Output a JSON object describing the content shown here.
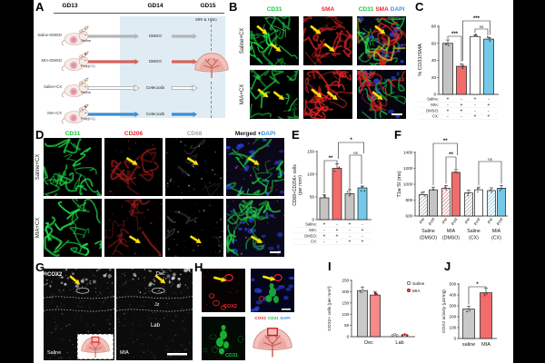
{
  "colors": {
    "green_label": "#18c23c",
    "red_label": "#e8262d",
    "blue_label": "#3f8fe8",
    "gray_label": "#a8a8a8",
    "bar_gray": "#c4c4c4",
    "bar_red": "#f26c6c",
    "bar_blue": "#74c9e9",
    "bar_white": "#ffffff",
    "arrow_yellow": "#ffe10a",
    "timeline_bg": "#dfecf4"
  },
  "panelA": {
    "letter": "A",
    "timepoints": [
      "GD13",
      "GD14",
      "GD15"
    ],
    "endpoint": "MRI & Histo",
    "rows": [
      {
        "group": "Saline+DMSO",
        "injection": "Saline",
        "treatment": "DMSO",
        "arrow_color": "#b6b6b6",
        "arrow_style": "solid",
        "syringe_color": "#dca83e"
      },
      {
        "group": "MIA+DMSO",
        "injection": "Poly(I:C)",
        "treatment": "DMSO",
        "arrow_color": "#d8625c",
        "arrow_style": "solid",
        "syringe_color": "#c24a44"
      },
      {
        "group": "Saline+CX",
        "injection": "Saline",
        "treatment": "Celecoxib",
        "arrow_color": "#c9c9c9",
        "arrow_style": "outline",
        "syringe_color": "#dca83e"
      },
      {
        "group": "MIA+CX",
        "injection": "Poly(I:C)",
        "treatment": "Celecoxib",
        "arrow_color": "#3e8ed0",
        "arrow_style": "solid",
        "syringe_color": "#c24a44"
      }
    ]
  },
  "panelB": {
    "letter": "B",
    "columns": [
      {
        "label": "CD31",
        "color": "#18c23c"
      },
      {
        "label": "SMA",
        "color": "#e8262d"
      }
    ],
    "merged_parts": [
      {
        "text": "CD31",
        "color": "#18c23c"
      },
      {
        "text": "SMA",
        "color": "#e8262d"
      },
      {
        "text": "DAPI",
        "color": "#3f8fe8"
      }
    ],
    "rows": [
      "Saline+CX",
      "MIA+CX"
    ]
  },
  "panelD": {
    "letter": "D",
    "columns": [
      {
        "label": "CD31",
        "color": "#18c23c"
      },
      {
        "label": "CD206",
        "color": "#e8262d"
      },
      {
        "label": "CD68",
        "color": "#a8a8a8"
      }
    ],
    "merged_parts": [
      {
        "text": "Merged + ",
        "color": "#111111"
      },
      {
        "text": "DAPI",
        "color": "#3f8fe8"
      }
    ],
    "rows": [
      "Saline+CX",
      "MIA+CX"
    ]
  },
  "panelG": {
    "letter": "G",
    "stain": "COX2",
    "regions": [
      "Dec",
      "Jz",
      "Lab"
    ],
    "conditions": [
      "Saline",
      "MIA"
    ]
  },
  "panelH": {
    "letter": "H",
    "cox2_label": "COX2",
    "cd31_label": "CD31",
    "caption_parts": [
      {
        "text": "COX2",
        "color": "#e8262d"
      },
      {
        "text": "CD31",
        "color": "#18c23c"
      },
      {
        "text": "DAPI",
        "color": "#3f8fe8"
      }
    ]
  },
  "chart_data": [
    {
      "panel": "C",
      "letter": "C",
      "type": "bar",
      "ylabel": "% CD31/SMA",
      "ylim": [
        0,
        80
      ],
      "yticks": [
        0,
        20,
        40,
        60,
        80
      ],
      "categories": [
        "Saline+DMSO",
        "MIA+DMSO",
        "Saline+CX",
        "MIA+CX"
      ],
      "values": [
        60,
        33,
        68,
        65
      ],
      "errors": [
        4,
        3,
        2,
        2
      ],
      "bar_colors": [
        "#c4c4c4",
        "#f26c6c",
        "#ffffff",
        "#74c9e9"
      ],
      "significance": [
        {
          "a": 0,
          "b": 1,
          "label": "***"
        },
        {
          "a": 1,
          "b": 3,
          "label": "***"
        },
        {
          "a": 2,
          "b": 3,
          "label": "ns"
        }
      ],
      "condition_rows": [
        {
          "label": "Saline:",
          "signs": [
            "+",
            "-",
            "+",
            "-"
          ]
        },
        {
          "label": "MIA:",
          "signs": [
            "-",
            "+",
            "-",
            "+"
          ]
        },
        {
          "label": "DMSO:",
          "signs": [
            "+",
            "+",
            "-",
            "-"
          ]
        },
        {
          "label": "CX:",
          "signs": [
            "-",
            "-",
            "+",
            "+"
          ]
        }
      ]
    },
    {
      "panel": "E",
      "letter": "E",
      "type": "bar",
      "ylabel": "CD68+CD206+ cells (per mm²)",
      "ylabel_lines": [
        "CD68+CD206+ cells",
        "(per mm²)"
      ],
      "ylim": [
        0,
        150
      ],
      "yticks": [
        0,
        50,
        100,
        150
      ],
      "categories": [
        "Saline+DMSO",
        "MIA+DMSO",
        "Saline+CX",
        "MIA+CX"
      ],
      "values": [
        48,
        113,
        57,
        70
      ],
      "errors": [
        7,
        10,
        9,
        4
      ],
      "bar_colors": [
        "#c4c4c4",
        "#f26c6c",
        "#c4c4c4",
        "#74c9e9"
      ],
      "significance": [
        {
          "a": 0,
          "b": 1,
          "label": "**"
        },
        {
          "a": 1,
          "b": 3,
          "label": "*"
        },
        {
          "a": 2,
          "b": 3,
          "label": "ns"
        }
      ],
      "condition_rows": [
        {
          "label": "Saline:",
          "signs": [
            "+",
            "-",
            "+",
            "-"
          ]
        },
        {
          "label": "MIA:",
          "signs": [
            "-",
            "+",
            "-",
            "+"
          ]
        },
        {
          "label": "DMSO:",
          "signs": [
            "+",
            "+",
            "-",
            "-"
          ]
        },
        {
          "label": "CX:",
          "signs": [
            "-",
            "-",
            "+",
            "+"
          ]
        }
      ]
    },
    {
      "panel": "F",
      "letter": "F",
      "type": "bar",
      "ylabel": "T1w SI (ms)",
      "ylim": [
        600,
        1400
      ],
      "yticks": [
        600,
        800,
        1000,
        1200,
        1400
      ],
      "bar_labels": [
        "Pre",
        "Post"
      ],
      "groups": [
        {
          "name_lines": [
            "Saline",
            "(DMSO)"
          ],
          "color": "#c4c4c4",
          "hatch": "#8a8a8a",
          "values": [
            870,
            930
          ]
        },
        {
          "name_lines": [
            "MIA",
            "(DMSO)"
          ],
          "color": "#f26c6c",
          "hatch": "#e05555",
          "values": [
            950,
            1150
          ]
        },
        {
          "name_lines": [
            "Saline",
            "(CX)"
          ],
          "color": "#ffffff",
          "hatch": "#8a8a8a",
          "values": [
            890,
            930
          ]
        },
        {
          "name_lines": [
            "MIA",
            "(CX)"
          ],
          "color": "#74c9e9",
          "hatch": "#4fb2dd",
          "values": [
            920,
            950
          ]
        }
      ],
      "significance": [
        {
          "a": 1,
          "b": 3,
          "label": "**"
        },
        {
          "a": 2,
          "b": 3,
          "label": "**"
        },
        {
          "a": 5,
          "b": 7,
          "label": "ns"
        }
      ]
    },
    {
      "panel": "I",
      "letter": "I",
      "type": "bar",
      "ylabel": "COX2+ cells (per mm²)",
      "ylim": [
        0,
        250
      ],
      "yticks": [
        0,
        50,
        100,
        150,
        200,
        250
      ],
      "categories": [
        "Dec",
        "Lab"
      ],
      "series": [
        {
          "name": "Saline",
          "color": "#c9c9c9",
          "values": [
            205,
            0
          ]
        },
        {
          "name": "MIA",
          "color": "#f48a8a",
          "values": [
            185,
            0
          ]
        }
      ]
    },
    {
      "panel": "J",
      "letter": "J",
      "type": "bar",
      "ylabel": "COX2 activity (μU/mg)",
      "ylim": [
        0,
        500
      ],
      "yticks": [
        0,
        100,
        200,
        300,
        400,
        500
      ],
      "categories": [
        "saline",
        "MIA"
      ],
      "values": [
        270,
        420
      ],
      "errors": [
        25,
        40
      ],
      "bar_colors": [
        "#c9c9c9",
        "#f26c6c"
      ],
      "significance": [
        {
          "a": 0,
          "b": 1,
          "label": "*"
        }
      ]
    }
  ]
}
